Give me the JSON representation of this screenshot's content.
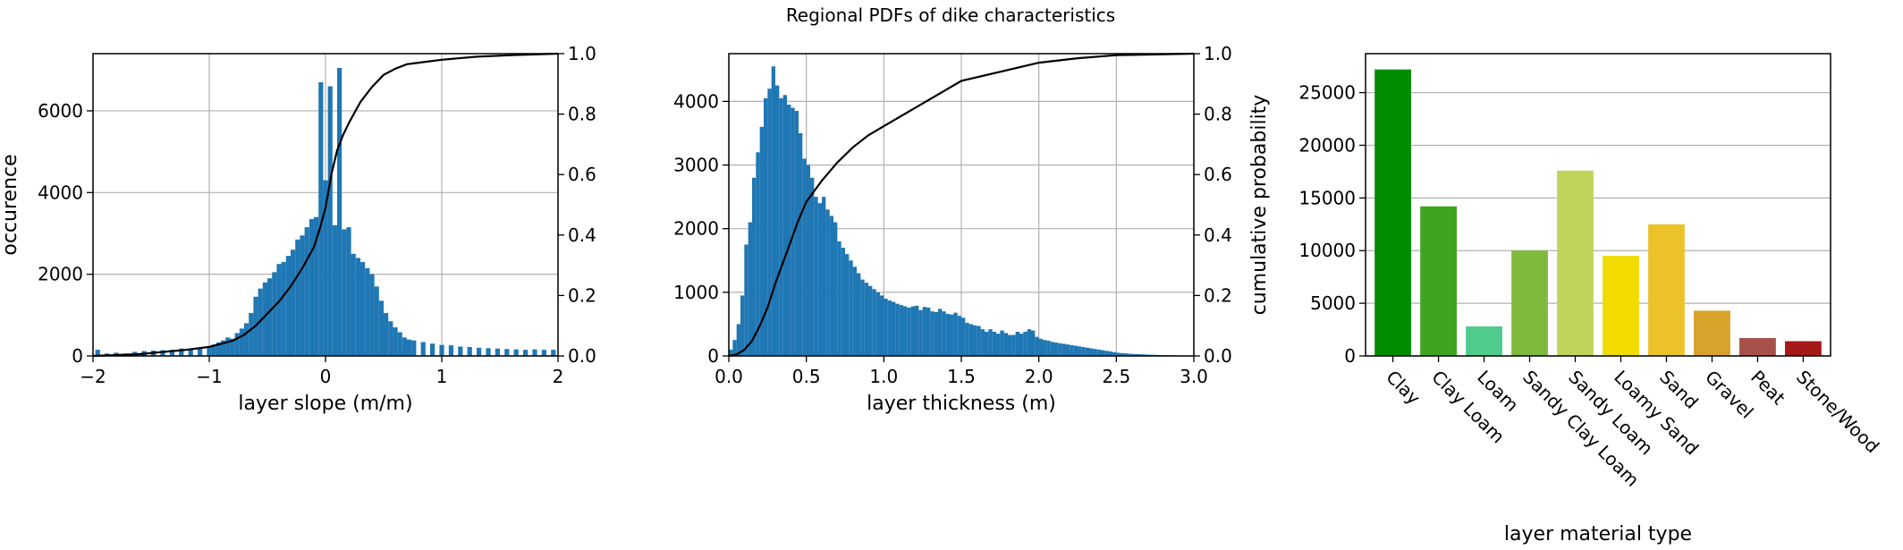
{
  "figure": {
    "suptitle": "Regional PDFs of dike characteristics"
  },
  "colors": {
    "hist": "#1f77b4",
    "cdf": "#000000",
    "grid": "#b0b0b0",
    "bar_colors": [
      "#008c00",
      "#3ea521",
      "#4ecb8d",
      "#80ba3c",
      "#c2d35c",
      "#f2dc00",
      "#ecc22b",
      "#d8a22b",
      "#a6524a",
      "#a61919"
    ]
  },
  "chart_data": [
    {
      "type": "bar",
      "subtype": "histogram",
      "title": "",
      "xlabel": "layer slope (m/m)",
      "ylabel": "occurence",
      "y2label": "",
      "xlim": [
        -2,
        2
      ],
      "ylim": [
        0,
        7400
      ],
      "y2lim": [
        0,
        1
      ],
      "xticks": [
        "-2",
        "-1",
        "0",
        "1",
        "2"
      ],
      "yticks": [
        "0",
        "2000",
        "4000",
        "6000"
      ],
      "y2ticks": [
        "0.0",
        "0.2",
        "0.4",
        "0.6",
        "0.8",
        "1.0"
      ],
      "grid": true,
      "bin_width": 0.04,
      "bins": [
        {
          "x": -1.96,
          "y": 150
        },
        {
          "x": -1.88,
          "y": 60
        },
        {
          "x": -1.8,
          "y": 80
        },
        {
          "x": -1.72,
          "y": 60
        },
        {
          "x": -1.64,
          "y": 100
        },
        {
          "x": -1.56,
          "y": 120
        },
        {
          "x": -1.48,
          "y": 130
        },
        {
          "x": -1.4,
          "y": 140
        },
        {
          "x": -1.32,
          "y": 150
        },
        {
          "x": -1.24,
          "y": 180
        },
        {
          "x": -1.16,
          "y": 170
        },
        {
          "x": -1.08,
          "y": 200
        },
        {
          "x": -1.0,
          "y": 230
        },
        {
          "x": -0.96,
          "y": 280
        },
        {
          "x": -0.92,
          "y": 330
        },
        {
          "x": -0.88,
          "y": 380
        },
        {
          "x": -0.84,
          "y": 450
        },
        {
          "x": -0.8,
          "y": 420
        },
        {
          "x": -0.76,
          "y": 560
        },
        {
          "x": -0.72,
          "y": 670
        },
        {
          "x": -0.68,
          "y": 800
        },
        {
          "x": -0.64,
          "y": 1050
        },
        {
          "x": -0.6,
          "y": 1450
        },
        {
          "x": -0.56,
          "y": 1650
        },
        {
          "x": -0.52,
          "y": 1800
        },
        {
          "x": -0.48,
          "y": 1900
        },
        {
          "x": -0.44,
          "y": 2050
        },
        {
          "x": -0.4,
          "y": 2250
        },
        {
          "x": -0.36,
          "y": 2300
        },
        {
          "x": -0.32,
          "y": 2450
        },
        {
          "x": -0.28,
          "y": 2600
        },
        {
          "x": -0.24,
          "y": 2850
        },
        {
          "x": -0.2,
          "y": 2950
        },
        {
          "x": -0.16,
          "y": 3150
        },
        {
          "x": -0.12,
          "y": 3350
        },
        {
          "x": -0.08,
          "y": 3400
        },
        {
          "x": -0.04,
          "y": 6700
        },
        {
          "x": 0.0,
          "y": 4300
        },
        {
          "x": 0.04,
          "y": 6600
        },
        {
          "x": 0.08,
          "y": 3200
        },
        {
          "x": 0.12,
          "y": 7050
        },
        {
          "x": 0.16,
          "y": 3100
        },
        {
          "x": 0.2,
          "y": 3150
        },
        {
          "x": 0.24,
          "y": 2500
        },
        {
          "x": 0.28,
          "y": 2400
        },
        {
          "x": 0.32,
          "y": 2300
        },
        {
          "x": 0.36,
          "y": 2150
        },
        {
          "x": 0.4,
          "y": 2000
        },
        {
          "x": 0.44,
          "y": 1700
        },
        {
          "x": 0.48,
          "y": 1350
        },
        {
          "x": 0.52,
          "y": 1050
        },
        {
          "x": 0.56,
          "y": 850
        },
        {
          "x": 0.6,
          "y": 700
        },
        {
          "x": 0.64,
          "y": 580
        },
        {
          "x": 0.68,
          "y": 450
        },
        {
          "x": 0.72,
          "y": 400
        },
        {
          "x": 0.76,
          "y": 380
        },
        {
          "x": 0.84,
          "y": 340
        },
        {
          "x": 0.92,
          "y": 300
        },
        {
          "x": 1.0,
          "y": 270
        },
        {
          "x": 1.08,
          "y": 260
        },
        {
          "x": 1.16,
          "y": 230
        },
        {
          "x": 1.24,
          "y": 220
        },
        {
          "x": 1.32,
          "y": 200
        },
        {
          "x": 1.4,
          "y": 190
        },
        {
          "x": 1.48,
          "y": 180
        },
        {
          "x": 1.56,
          "y": 170
        },
        {
          "x": 1.64,
          "y": 160
        },
        {
          "x": 1.72,
          "y": 150
        },
        {
          "x": 1.8,
          "y": 160
        },
        {
          "x": 1.88,
          "y": 150
        },
        {
          "x": 1.96,
          "y": 150
        }
      ],
      "cdf": [
        [
          -2.0,
          0.0
        ],
        [
          -1.6,
          0.006
        ],
        [
          -1.2,
          0.02
        ],
        [
          -1.0,
          0.03
        ],
        [
          -0.8,
          0.05
        ],
        [
          -0.7,
          0.07
        ],
        [
          -0.6,
          0.1
        ],
        [
          -0.5,
          0.14
        ],
        [
          -0.4,
          0.18
        ],
        [
          -0.3,
          0.23
        ],
        [
          -0.2,
          0.29
        ],
        [
          -0.1,
          0.36
        ],
        [
          -0.05,
          0.42
        ],
        [
          0.0,
          0.49
        ],
        [
          0.05,
          0.6
        ],
        [
          0.1,
          0.68
        ],
        [
          0.15,
          0.73
        ],
        [
          0.2,
          0.77
        ],
        [
          0.3,
          0.84
        ],
        [
          0.4,
          0.89
        ],
        [
          0.5,
          0.93
        ],
        [
          0.6,
          0.95
        ],
        [
          0.7,
          0.965
        ],
        [
          0.8,
          0.97
        ],
        [
          1.0,
          0.98
        ],
        [
          1.3,
          0.99
        ],
        [
          1.6,
          0.995
        ],
        [
          2.0,
          1.0
        ]
      ]
    },
    {
      "type": "bar",
      "subtype": "histogram",
      "title": "",
      "xlabel": "layer thickness (m)",
      "ylabel": "",
      "y2label": "cumulative probability",
      "xlim": [
        0,
        3
      ],
      "ylim": [
        0,
        4750
      ],
      "y2lim": [
        0,
        1
      ],
      "xticks": [
        "0.0",
        "0.5",
        "1.0",
        "1.5",
        "2.0",
        "2.5",
        "3.0"
      ],
      "yticks": [
        "0",
        "1000",
        "2000",
        "3000",
        "4000"
      ],
      "y2ticks": [
        "0.0",
        "0.2",
        "0.4",
        "0.6",
        "0.8",
        "1.0"
      ],
      "grid": true,
      "bin_width": 0.025,
      "bins": [
        {
          "x": 0.0125,
          "y": 100
        },
        {
          "x": 0.0375,
          "y": 250
        },
        {
          "x": 0.0625,
          "y": 500
        },
        {
          "x": 0.0875,
          "y": 950
        },
        {
          "x": 0.1125,
          "y": 1750
        },
        {
          "x": 0.1375,
          "y": 2100
        },
        {
          "x": 0.1625,
          "y": 2800
        },
        {
          "x": 0.1875,
          "y": 3200
        },
        {
          "x": 0.2125,
          "y": 3600
        },
        {
          "x": 0.2375,
          "y": 4050
        },
        {
          "x": 0.2625,
          "y": 4200
        },
        {
          "x": 0.2875,
          "y": 4550
        },
        {
          "x": 0.3125,
          "y": 4250
        },
        {
          "x": 0.3375,
          "y": 4050
        },
        {
          "x": 0.3625,
          "y": 4100
        },
        {
          "x": 0.3875,
          "y": 3950
        },
        {
          "x": 0.4125,
          "y": 3900
        },
        {
          "x": 0.4375,
          "y": 3850
        },
        {
          "x": 0.4625,
          "y": 3500
        },
        {
          "x": 0.4875,
          "y": 3100
        },
        {
          "x": 0.5125,
          "y": 3000
        },
        {
          "x": 0.5375,
          "y": 2800
        },
        {
          "x": 0.5625,
          "y": 2500
        },
        {
          "x": 0.5875,
          "y": 2400
        },
        {
          "x": 0.6125,
          "y": 2500
        },
        {
          "x": 0.6375,
          "y": 2300
        },
        {
          "x": 0.6625,
          "y": 2200
        },
        {
          "x": 0.6875,
          "y": 2100
        },
        {
          "x": 0.7125,
          "y": 1800
        },
        {
          "x": 0.7375,
          "y": 1700
        },
        {
          "x": 0.7625,
          "y": 1600
        },
        {
          "x": 0.7875,
          "y": 1500
        },
        {
          "x": 0.8125,
          "y": 1400
        },
        {
          "x": 0.8375,
          "y": 1300
        },
        {
          "x": 0.8625,
          "y": 1200
        },
        {
          "x": 0.8875,
          "y": 1150
        },
        {
          "x": 0.9125,
          "y": 1100
        },
        {
          "x": 0.9375,
          "y": 1050
        },
        {
          "x": 0.9625,
          "y": 1000
        },
        {
          "x": 0.9875,
          "y": 950
        },
        {
          "x": 1.0125,
          "y": 900
        },
        {
          "x": 1.0375,
          "y": 870
        },
        {
          "x": 1.0625,
          "y": 850
        },
        {
          "x": 1.0875,
          "y": 820
        },
        {
          "x": 1.1125,
          "y": 800
        },
        {
          "x": 1.1375,
          "y": 780
        },
        {
          "x": 1.1625,
          "y": 760
        },
        {
          "x": 1.1875,
          "y": 780
        },
        {
          "x": 1.2125,
          "y": 790
        },
        {
          "x": 1.2375,
          "y": 720
        },
        {
          "x": 1.2625,
          "y": 770
        },
        {
          "x": 1.2875,
          "y": 760
        },
        {
          "x": 1.3125,
          "y": 700
        },
        {
          "x": 1.3375,
          "y": 690
        },
        {
          "x": 1.3625,
          "y": 740
        },
        {
          "x": 1.3875,
          "y": 700
        },
        {
          "x": 1.4125,
          "y": 660
        },
        {
          "x": 1.4375,
          "y": 650
        },
        {
          "x": 1.4625,
          "y": 680
        },
        {
          "x": 1.4875,
          "y": 630
        },
        {
          "x": 1.5125,
          "y": 600
        },
        {
          "x": 1.5375,
          "y": 520
        },
        {
          "x": 1.5625,
          "y": 500
        },
        {
          "x": 1.5875,
          "y": 480
        },
        {
          "x": 1.6125,
          "y": 470
        },
        {
          "x": 1.6375,
          "y": 420
        },
        {
          "x": 1.6625,
          "y": 380
        },
        {
          "x": 1.6875,
          "y": 420
        },
        {
          "x": 1.7125,
          "y": 380
        },
        {
          "x": 1.7375,
          "y": 350
        },
        {
          "x": 1.7625,
          "y": 400
        },
        {
          "x": 1.7875,
          "y": 360
        },
        {
          "x": 1.8125,
          "y": 330
        },
        {
          "x": 1.8375,
          "y": 330
        },
        {
          "x": 1.8625,
          "y": 380
        },
        {
          "x": 1.8875,
          "y": 350
        },
        {
          "x": 1.9125,
          "y": 380
        },
        {
          "x": 1.9375,
          "y": 420
        },
        {
          "x": 1.9625,
          "y": 400
        },
        {
          "x": 1.9875,
          "y": 300
        },
        {
          "x": 2.0125,
          "y": 270
        },
        {
          "x": 2.0375,
          "y": 250
        },
        {
          "x": 2.0625,
          "y": 240
        },
        {
          "x": 2.0875,
          "y": 220
        },
        {
          "x": 2.1125,
          "y": 210
        },
        {
          "x": 2.1375,
          "y": 200
        },
        {
          "x": 2.1625,
          "y": 190
        },
        {
          "x": 2.1875,
          "y": 180
        },
        {
          "x": 2.2125,
          "y": 170
        },
        {
          "x": 2.2375,
          "y": 160
        },
        {
          "x": 2.2625,
          "y": 150
        },
        {
          "x": 2.2875,
          "y": 140
        },
        {
          "x": 2.3125,
          "y": 130
        },
        {
          "x": 2.3375,
          "y": 120
        },
        {
          "x": 2.3625,
          "y": 110
        },
        {
          "x": 2.3875,
          "y": 100
        },
        {
          "x": 2.4125,
          "y": 90
        },
        {
          "x": 2.4375,
          "y": 80
        },
        {
          "x": 2.4625,
          "y": 70
        },
        {
          "x": 2.4875,
          "y": 60
        },
        {
          "x": 2.5125,
          "y": 50
        },
        {
          "x": 2.5375,
          "y": 45
        },
        {
          "x": 2.5625,
          "y": 40
        },
        {
          "x": 2.5875,
          "y": 35
        },
        {
          "x": 2.6125,
          "y": 30
        },
        {
          "x": 2.6375,
          "y": 28
        },
        {
          "x": 2.6625,
          "y": 25
        },
        {
          "x": 2.6875,
          "y": 22
        },
        {
          "x": 2.7125,
          "y": 20
        },
        {
          "x": 2.7375,
          "y": 18
        },
        {
          "x": 2.7625,
          "y": 16
        },
        {
          "x": 2.7875,
          "y": 14
        },
        {
          "x": 2.8125,
          "y": 12
        },
        {
          "x": 2.8375,
          "y": 10
        },
        {
          "x": 2.8625,
          "y": 10
        },
        {
          "x": 2.8875,
          "y": 8
        },
        {
          "x": 2.9125,
          "y": 8
        },
        {
          "x": 2.9375,
          "y": 6
        },
        {
          "x": 2.9625,
          "y": 6
        },
        {
          "x": 2.9875,
          "y": 5
        }
      ],
      "cdf": [
        [
          0.0,
          0.0
        ],
        [
          0.05,
          0.005
        ],
        [
          0.1,
          0.02
        ],
        [
          0.15,
          0.05
        ],
        [
          0.2,
          0.1
        ],
        [
          0.25,
          0.16
        ],
        [
          0.3,
          0.24
        ],
        [
          0.35,
          0.31
        ],
        [
          0.4,
          0.38
        ],
        [
          0.45,
          0.45
        ],
        [
          0.5,
          0.51
        ],
        [
          0.6,
          0.58
        ],
        [
          0.7,
          0.64
        ],
        [
          0.8,
          0.69
        ],
        [
          0.9,
          0.73
        ],
        [
          1.0,
          0.76
        ],
        [
          1.2,
          0.82
        ],
        [
          1.4,
          0.88
        ],
        [
          1.5,
          0.91
        ],
        [
          1.75,
          0.94
        ],
        [
          2.0,
          0.97
        ],
        [
          2.25,
          0.985
        ],
        [
          2.5,
          0.995
        ],
        [
          3.0,
          1.0
        ]
      ]
    },
    {
      "type": "bar",
      "title": "",
      "xlabel": "layer material type",
      "ylabel": "",
      "ylim": [
        0,
        28700
      ],
      "yticks": [
        "0",
        "5000",
        "10000",
        "15000",
        "20000",
        "25000"
      ],
      "grid": true,
      "categories": [
        "Clay",
        "Clay Loam",
        "Loam",
        "Sandy Clay Loam",
        "Sandy Loam",
        "Loamy Sand",
        "Sand",
        "Gravel",
        "Peat",
        "Stone/Wood"
      ],
      "values": [
        27200,
        14200,
        2800,
        10000,
        17600,
        9500,
        12500,
        4300,
        1700,
        1400
      ]
    }
  ]
}
